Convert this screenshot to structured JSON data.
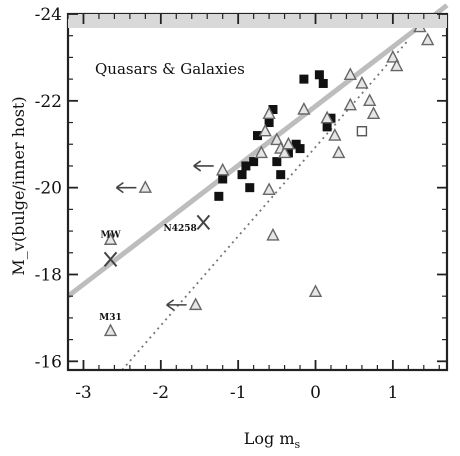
{
  "chart_data": {
    "type": "scatter",
    "title": "Quasars & Galaxies",
    "xlabel": "Log m",
    "xlabel_sub": "s",
    "ylabel": "M_v(bulge/inner host)",
    "xlim": [
      -3.2,
      1.7
    ],
    "ylim": [
      -15.8,
      -24
    ],
    "y_inverted": true,
    "xticks": [
      -3,
      -2,
      -1,
      0,
      1
    ],
    "yticks": [
      -16,
      -18,
      -20,
      -22,
      -24
    ],
    "xtick_labels": [
      "-3",
      "-2",
      "-1",
      "0",
      "1"
    ],
    "ytick_labels": [
      "-16",
      "-18",
      "-20",
      "-22",
      "-24"
    ],
    "grid": false,
    "fit_lines": [
      {
        "style": "solid",
        "color": "#bdbdbd",
        "x": [
          -3.2,
          1.7
        ],
        "y": [
          -17.5,
          -24.2
        ]
      },
      {
        "style": "dotted",
        "color": "#777777",
        "x": [
          -2.5,
          1.2
        ],
        "y": [
          -15.8,
          -23.4
        ]
      }
    ],
    "series": [
      {
        "marker": "filled-square",
        "points": [
          [
            -1.25,
            -19.8
          ],
          [
            -1.2,
            -20.2
          ],
          [
            -0.95,
            -20.3
          ],
          [
            -0.9,
            -20.5
          ],
          [
            -0.85,
            -20.0
          ],
          [
            -0.8,
            -20.6
          ],
          [
            -0.75,
            -21.2
          ],
          [
            -0.6,
            -21.5
          ],
          [
            -0.55,
            -21.8
          ],
          [
            -0.5,
            -20.6
          ],
          [
            -0.45,
            -20.3
          ],
          [
            -0.35,
            -20.8
          ],
          [
            -0.25,
            -21.0
          ],
          [
            -0.2,
            -20.9
          ],
          [
            -0.15,
            -22.5
          ],
          [
            0.05,
            -22.6
          ],
          [
            0.1,
            -22.4
          ],
          [
            0.15,
            -21.4
          ],
          [
            0.2,
            -21.6
          ]
        ]
      },
      {
        "marker": "open-square",
        "points": [
          [
            0.6,
            -21.3
          ]
        ]
      },
      {
        "marker": "open-triangle",
        "points": [
          [
            -2.2,
            -20.0
          ],
          [
            -1.55,
            -17.3
          ],
          [
            -1.2,
            -20.4
          ],
          [
            -0.7,
            -20.8
          ],
          [
            -0.65,
            -21.3
          ],
          [
            -0.6,
            -21.7
          ],
          [
            -0.6,
            -19.95
          ],
          [
            -0.55,
            -18.9
          ],
          [
            -0.5,
            -21.1
          ],
          [
            -0.45,
            -20.9
          ],
          [
            -0.4,
            -20.8
          ],
          [
            -0.35,
            -21.0
          ],
          [
            -0.15,
            -21.8
          ],
          [
            0.0,
            -17.6
          ],
          [
            0.15,
            -21.6
          ],
          [
            0.25,
            -21.2
          ],
          [
            0.3,
            -20.8
          ],
          [
            0.45,
            -22.6
          ],
          [
            0.45,
            -21.9
          ],
          [
            0.6,
            -22.4
          ],
          [
            0.7,
            -22.0
          ],
          [
            0.75,
            -21.7
          ],
          [
            1.0,
            -23.0
          ],
          [
            1.05,
            -22.8
          ],
          [
            1.35,
            -23.7
          ],
          [
            1.45,
            -23.4
          ],
          [
            -2.65,
            -16.7
          ],
          [
            -2.65,
            -18.8
          ]
        ]
      },
      {
        "marker": "cross",
        "points": [
          [
            -2.65,
            -18.35
          ],
          [
            -1.45,
            -19.2
          ]
        ]
      }
    ],
    "upper_limit_arrows": [
      {
        "x": -2.2,
        "y": -20.0,
        "direction": "left"
      },
      {
        "x": -1.55,
        "y": -17.3,
        "direction": "left"
      },
      {
        "x": -1.2,
        "y": -20.5,
        "direction": "left"
      }
    ],
    "annotations": [
      {
        "text": "MW",
        "x": -2.65,
        "y": -18.85
      },
      {
        "text": "M31",
        "x": -2.65,
        "y": -16.95
      },
      {
        "text": "N4258",
        "x": -1.75,
        "y": -19.0
      }
    ]
  }
}
